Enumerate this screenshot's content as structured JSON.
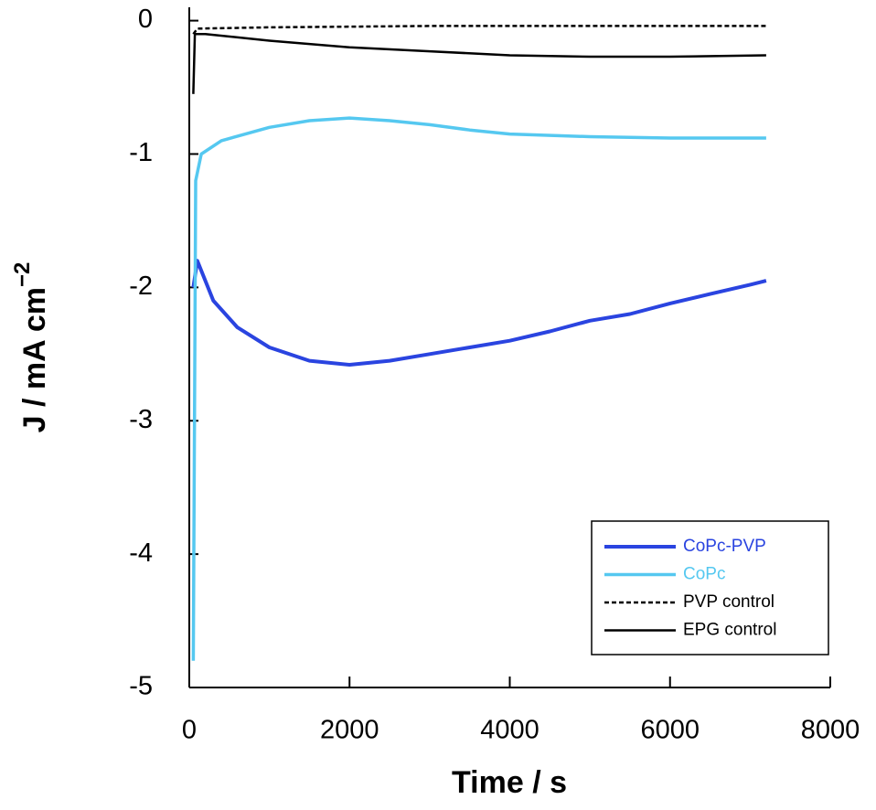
{
  "chart_data": {
    "type": "line",
    "x_label": "Time / s",
    "y_label": "J / mA cm",
    "y_label_superscript": "−2",
    "xlim": [
      0,
      8000
    ],
    "xticks": [
      0,
      2000,
      4000,
      6000,
      8000
    ],
    "ylim": [
      -5,
      0.1
    ],
    "yticks": [
      0,
      -1,
      -2,
      -3,
      -4,
      -5
    ],
    "legend": "lower right",
    "series": [
      {
        "name": "CoPc-PVP",
        "color": "#2a44e0",
        "linestyle": "solid",
        "linewidth": 4,
        "x": [
          50,
          100,
          300,
          600,
          1000,
          1500,
          2000,
          2500,
          3000,
          3500,
          4000,
          4500,
          5000,
          5500,
          6000,
          6500,
          7000,
          7200
        ],
        "values": [
          -2.0,
          -1.8,
          -2.1,
          -2.3,
          -2.45,
          -2.55,
          -2.58,
          -2.55,
          -2.5,
          -2.45,
          -2.4,
          -2.33,
          -2.25,
          -2.2,
          -2.12,
          -2.05,
          -1.98,
          -1.95
        ]
      },
      {
        "name": "CoPc",
        "color": "#55c8f0",
        "linestyle": "solid",
        "linewidth": 3.5,
        "x": [
          50,
          80,
          150,
          400,
          1000,
          1500,
          2000,
          2500,
          3000,
          3500,
          4000,
          5000,
          6000,
          7200
        ],
        "values": [
          -4.8,
          -1.2,
          -1.0,
          -0.9,
          -0.8,
          -0.75,
          -0.73,
          -0.75,
          -0.78,
          -0.82,
          -0.85,
          -0.87,
          -0.88,
          -0.88
        ]
      },
      {
        "name": "PVP control",
        "color": "#000000",
        "linestyle": "dashed",
        "linewidth": 2.5,
        "x": [
          50,
          100,
          1000,
          3000,
          7200
        ],
        "values": [
          -0.1,
          -0.06,
          -0.05,
          -0.04,
          -0.04
        ]
      },
      {
        "name": "EPG control",
        "color": "#000000",
        "linestyle": "solid",
        "linewidth": 2.5,
        "x": [
          50,
          70,
          200,
          1000,
          2000,
          3000,
          4000,
          5000,
          6000,
          7200
        ],
        "values": [
          -0.55,
          -0.1,
          -0.1,
          -0.15,
          -0.2,
          -0.23,
          -0.26,
          -0.27,
          -0.27,
          -0.26
        ]
      }
    ]
  }
}
